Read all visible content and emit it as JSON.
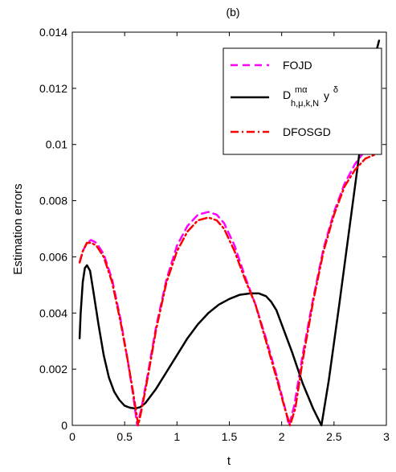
{
  "chart_data": {
    "type": "line",
    "title": "(b)",
    "xlabel": "t",
    "ylabel": "Estimation errors",
    "xlim": [
      0,
      3
    ],
    "ylim": [
      0,
      0.014
    ],
    "xticks": [
      "0",
      "0.5",
      "1",
      "1.5",
      "2",
      "2.5",
      "3"
    ],
    "yticks": [
      "0",
      "0.002",
      "0.004",
      "0.006",
      "0.008",
      "0.01",
      "0.012",
      "0.014"
    ],
    "grid": false,
    "legend_position": "top-right",
    "series": [
      {
        "name": "FOJD",
        "color": "#ff00ff",
        "style": "dashed",
        "points": [
          [
            0.07,
            0.0058
          ],
          [
            0.1,
            0.0062
          ],
          [
            0.14,
            0.0065
          ],
          [
            0.18,
            0.0066
          ],
          [
            0.23,
            0.0065
          ],
          [
            0.3,
            0.0061
          ],
          [
            0.38,
            0.0052
          ],
          [
            0.46,
            0.0038
          ],
          [
            0.53,
            0.0023
          ],
          [
            0.58,
            0.0011
          ],
          [
            0.62,
            0.0
          ],
          [
            0.66,
            0.0006
          ],
          [
            0.72,
            0.0018
          ],
          [
            0.8,
            0.0035
          ],
          [
            0.9,
            0.0052
          ],
          [
            1.0,
            0.0064
          ],
          [
            1.1,
            0.0071
          ],
          [
            1.2,
            0.0075
          ],
          [
            1.3,
            0.0076
          ],
          [
            1.38,
            0.0075
          ],
          [
            1.45,
            0.0072
          ],
          [
            1.55,
            0.0064
          ],
          [
            1.65,
            0.0053
          ],
          [
            1.75,
            0.0043
          ],
          [
            1.85,
            0.0031
          ],
          [
            1.95,
            0.0018
          ],
          [
            2.02,
            0.0008
          ],
          [
            2.07,
            0.0
          ],
          [
            2.12,
            0.0007
          ],
          [
            2.2,
            0.0025
          ],
          [
            2.3,
            0.0045
          ],
          [
            2.4,
            0.0063
          ],
          [
            2.5,
            0.0076
          ],
          [
            2.6,
            0.0086
          ],
          [
            2.7,
            0.0093
          ],
          [
            2.8,
            0.0098
          ],
          [
            2.9,
            0.0102
          ]
        ]
      },
      {
        "name": "D^{mα}_{h,μ,k,N} y^δ",
        "color": "#000000",
        "style": "solid",
        "points": [
          [
            0.07,
            0.0031
          ],
          [
            0.08,
            0.004
          ],
          [
            0.1,
            0.0051
          ],
          [
            0.12,
            0.0056
          ],
          [
            0.14,
            0.0057
          ],
          [
            0.17,
            0.0055
          ],
          [
            0.2,
            0.0048
          ],
          [
            0.25,
            0.0036
          ],
          [
            0.3,
            0.0025
          ],
          [
            0.35,
            0.0017
          ],
          [
            0.4,
            0.0012
          ],
          [
            0.45,
            0.0009
          ],
          [
            0.5,
            0.0007
          ],
          [
            0.55,
            0.00063
          ],
          [
            0.6,
            0.0006
          ],
          [
            0.65,
            0.00065
          ],
          [
            0.7,
            0.0008
          ],
          [
            0.8,
            0.0013
          ],
          [
            0.9,
            0.0019
          ],
          [
            1.0,
            0.0025
          ],
          [
            1.1,
            0.0031
          ],
          [
            1.2,
            0.0036
          ],
          [
            1.3,
            0.004
          ],
          [
            1.4,
            0.0043
          ],
          [
            1.5,
            0.0045
          ],
          [
            1.6,
            0.00465
          ],
          [
            1.7,
            0.0047
          ],
          [
            1.78,
            0.0047
          ],
          [
            1.85,
            0.0046
          ],
          [
            1.9,
            0.0044
          ],
          [
            1.95,
            0.0041
          ],
          [
            2.0,
            0.0036
          ],
          [
            2.1,
            0.0026
          ],
          [
            2.2,
            0.0015
          ],
          [
            2.3,
            0.0006
          ],
          [
            2.38,
            0.0
          ],
          [
            2.45,
            0.0016
          ],
          [
            2.55,
            0.0043
          ],
          [
            2.65,
            0.0071
          ],
          [
            2.75,
            0.0099
          ],
          [
            2.85,
            0.0125
          ],
          [
            2.93,
            0.0137
          ]
        ]
      },
      {
        "name": "DFOSGD",
        "color": "#ff0000",
        "style": "dashdot",
        "points": [
          [
            0.07,
            0.0058
          ],
          [
            0.1,
            0.0062
          ],
          [
            0.14,
            0.0065
          ],
          [
            0.18,
            0.0065
          ],
          [
            0.23,
            0.0064
          ],
          [
            0.3,
            0.006
          ],
          [
            0.38,
            0.0051
          ],
          [
            0.46,
            0.0037
          ],
          [
            0.53,
            0.0023
          ],
          [
            0.58,
            0.0012
          ],
          [
            0.63,
            0.0
          ],
          [
            0.67,
            0.0007
          ],
          [
            0.73,
            0.0019
          ],
          [
            0.8,
            0.0034
          ],
          [
            0.9,
            0.0051
          ],
          [
            1.0,
            0.0062
          ],
          [
            1.1,
            0.0069
          ],
          [
            1.2,
            0.0073
          ],
          [
            1.3,
            0.0074
          ],
          [
            1.38,
            0.0073
          ],
          [
            1.45,
            0.007
          ],
          [
            1.55,
            0.0062
          ],
          [
            1.65,
            0.0052
          ],
          [
            1.75,
            0.0043
          ],
          [
            1.85,
            0.003
          ],
          [
            1.95,
            0.0017
          ],
          [
            2.03,
            0.0006
          ],
          [
            2.08,
            0.0
          ],
          [
            2.13,
            0.0006
          ],
          [
            2.2,
            0.0023
          ],
          [
            2.3,
            0.0044
          ],
          [
            2.4,
            0.0062
          ],
          [
            2.5,
            0.0075
          ],
          [
            2.6,
            0.0085
          ],
          [
            2.7,
            0.0091
          ],
          [
            2.8,
            0.0095
          ],
          [
            2.93,
            0.0097
          ]
        ]
      }
    ]
  },
  "legend": {
    "fojd": "FOJD",
    "d_main": "D",
    "d_sup": "mα",
    "d_sub": "h,μ,k,N",
    "d_y": "y",
    "d_delta": "δ",
    "dfosgd": "DFOSGD"
  }
}
